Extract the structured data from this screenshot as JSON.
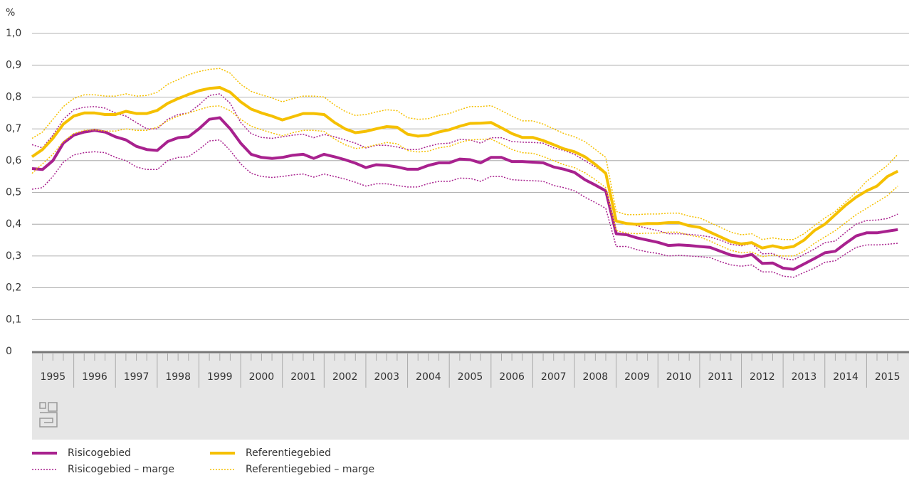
{
  "chart_data": {
    "type": "line",
    "y_unit": "%",
    "ylim": [
      0,
      1
    ],
    "yticks": [
      0,
      {
        "value": 0.1,
        "label": "0,1"
      },
      {
        "value": 0.2,
        "label": "0,2"
      },
      {
        "value": 0.3,
        "label": "0,3"
      },
      {
        "value": 0.4,
        "label": "0,4"
      },
      {
        "value": 0.5,
        "label": "0,5"
      },
      {
        "value": 0.6,
        "label": "0,6"
      },
      {
        "value": 0.7,
        "label": "0,7"
      },
      {
        "value": 0.8,
        "label": "0,8"
      },
      {
        "value": 0.9,
        "label": "0,9"
      },
      {
        "value": 1,
        "label": "1,0"
      }
    ],
    "grid": true,
    "categories": [
      "1995",
      null,
      null,
      null,
      "1996",
      null,
      null,
      null,
      "1997",
      null,
      null,
      null,
      "1998",
      null,
      null,
      null,
      "1999",
      null,
      null,
      null,
      "2000",
      null,
      null,
      null,
      "2001",
      null,
      null,
      null,
      "2002",
      null,
      null,
      null,
      "2003",
      null,
      null,
      null,
      "2004",
      null,
      null,
      null,
      "2005",
      null,
      null,
      null,
      "2006",
      null,
      null,
      null,
      "2007",
      null,
      null,
      null,
      "2008",
      null,
      null,
      null,
      "2009",
      null,
      null,
      null,
      "2010",
      null,
      null,
      null,
      "2011",
      null,
      null,
      null,
      "2012",
      null,
      null,
      null,
      "2013",
      null,
      null,
      null,
      "2014",
      null,
      null,
      null,
      "2015",
      null,
      null,
      null
    ],
    "series": [
      {
        "name": "Risicogebied",
        "color": "#a8218e",
        "values": [
          0.575,
          0.572,
          0.6,
          0.655,
          0.68,
          0.69,
          0.695,
          0.69,
          0.675,
          0.665,
          0.645,
          0.635,
          0.632,
          0.66,
          0.672,
          0.675,
          0.7,
          0.73,
          0.735,
          0.7,
          0.655,
          0.62,
          0.61,
          0.607,
          0.61,
          0.617,
          0.62,
          0.607,
          0.62,
          0.612,
          0.603,
          0.592,
          0.578,
          0.587,
          0.585,
          0.58,
          0.573,
          0.573,
          0.585,
          0.593,
          0.593,
          0.605,
          0.603,
          0.593,
          0.61,
          0.61,
          0.597,
          0.597,
          0.595,
          0.593,
          0.58,
          0.573,
          0.563,
          0.54,
          0.523,
          0.505,
          0.37,
          0.367,
          0.357,
          0.35,
          0.343,
          0.333,
          0.335,
          0.333,
          0.33,
          0.327,
          0.315,
          0.303,
          0.298,
          0.305,
          0.277,
          0.278,
          0.262,
          0.258,
          0.275,
          0.292,
          0.31,
          0.315,
          0.34,
          0.363,
          0.373,
          0.373,
          0.378,
          0.383
        ]
      },
      {
        "name": "Risicogebied – marge",
        "color": "#a8218e",
        "upper": [
          0.65,
          0.64,
          0.68,
          0.73,
          0.76,
          0.768,
          0.77,
          0.765,
          0.75,
          0.74,
          0.72,
          0.7,
          0.7,
          0.73,
          0.745,
          0.75,
          0.775,
          0.805,
          0.81,
          0.78,
          0.72,
          0.685,
          0.673,
          0.67,
          0.675,
          0.68,
          0.683,
          0.672,
          0.682,
          0.675,
          0.665,
          0.655,
          0.64,
          0.648,
          0.648,
          0.643,
          0.635,
          0.635,
          0.645,
          0.653,
          0.655,
          0.667,
          0.665,
          0.655,
          0.672,
          0.672,
          0.66,
          0.658,
          0.657,
          0.655,
          0.64,
          0.632,
          0.62,
          0.6,
          0.58,
          0.56,
          0.41,
          0.405,
          0.395,
          0.387,
          0.38,
          0.37,
          0.37,
          0.368,
          0.365,
          0.36,
          0.35,
          0.337,
          0.332,
          0.34,
          0.307,
          0.308,
          0.292,
          0.288,
          0.305,
          0.322,
          0.342,
          0.347,
          0.375,
          0.4,
          0.412,
          0.413,
          0.418,
          0.432
        ],
        "lower": [
          0.51,
          0.515,
          0.55,
          0.595,
          0.618,
          0.625,
          0.628,
          0.625,
          0.61,
          0.6,
          0.58,
          0.572,
          0.572,
          0.6,
          0.61,
          0.612,
          0.635,
          0.662,
          0.665,
          0.632,
          0.59,
          0.56,
          0.55,
          0.547,
          0.55,
          0.555,
          0.558,
          0.548,
          0.558,
          0.55,
          0.542,
          0.532,
          0.52,
          0.527,
          0.527,
          0.522,
          0.517,
          0.517,
          0.528,
          0.535,
          0.535,
          0.545,
          0.544,
          0.535,
          0.55,
          0.55,
          0.54,
          0.538,
          0.537,
          0.535,
          0.522,
          0.515,
          0.505,
          0.485,
          0.468,
          0.45,
          0.33,
          0.33,
          0.32,
          0.313,
          0.308,
          0.3,
          0.302,
          0.3,
          0.298,
          0.295,
          0.282,
          0.272,
          0.268,
          0.272,
          0.25,
          0.25,
          0.237,
          0.233,
          0.248,
          0.262,
          0.28,
          0.285,
          0.307,
          0.327,
          0.335,
          0.335,
          0.337,
          0.34
        ]
      },
      {
        "name": "Referentiegebied",
        "color": "#f5c000",
        "values": [
          0.612,
          0.635,
          0.67,
          0.715,
          0.74,
          0.75,
          0.75,
          0.745,
          0.745,
          0.755,
          0.748,
          0.748,
          0.758,
          0.78,
          0.795,
          0.808,
          0.82,
          0.827,
          0.83,
          0.815,
          0.785,
          0.762,
          0.75,
          0.74,
          0.728,
          0.738,
          0.748,
          0.748,
          0.745,
          0.72,
          0.7,
          0.688,
          0.692,
          0.7,
          0.707,
          0.705,
          0.683,
          0.677,
          0.68,
          0.69,
          0.697,
          0.708,
          0.717,
          0.718,
          0.72,
          0.703,
          0.685,
          0.673,
          0.673,
          0.663,
          0.65,
          0.637,
          0.628,
          0.612,
          0.588,
          0.56,
          0.41,
          0.402,
          0.4,
          0.402,
          0.402,
          0.405,
          0.405,
          0.395,
          0.39,
          0.375,
          0.36,
          0.345,
          0.338,
          0.342,
          0.325,
          0.332,
          0.325,
          0.33,
          0.35,
          0.38,
          0.4,
          0.43,
          0.46,
          0.485,
          0.505,
          0.52,
          0.55,
          0.567
        ]
      },
      {
        "name": "Referentiegebied – marge",
        "color": "#f5c000",
        "upper": [
          0.67,
          0.69,
          0.73,
          0.77,
          0.795,
          0.807,
          0.807,
          0.803,
          0.803,
          0.81,
          0.803,
          0.805,
          0.815,
          0.84,
          0.855,
          0.87,
          0.88,
          0.887,
          0.89,
          0.875,
          0.84,
          0.818,
          0.807,
          0.797,
          0.785,
          0.795,
          0.803,
          0.803,
          0.8,
          0.775,
          0.755,
          0.742,
          0.745,
          0.753,
          0.76,
          0.757,
          0.735,
          0.73,
          0.732,
          0.742,
          0.748,
          0.76,
          0.77,
          0.77,
          0.773,
          0.757,
          0.74,
          0.725,
          0.725,
          0.715,
          0.7,
          0.685,
          0.675,
          0.66,
          0.635,
          0.61,
          0.44,
          0.43,
          0.43,
          0.432,
          0.432,
          0.435,
          0.435,
          0.425,
          0.42,
          0.405,
          0.39,
          0.375,
          0.367,
          0.37,
          0.352,
          0.357,
          0.352,
          0.352,
          0.37,
          0.395,
          0.42,
          0.44,
          0.47,
          0.5,
          0.535,
          0.56,
          0.585,
          0.62
        ],
        "lower": [
          0.56,
          0.59,
          0.62,
          0.66,
          0.685,
          0.695,
          0.697,
          0.693,
          0.693,
          0.7,
          0.695,
          0.695,
          0.705,
          0.725,
          0.74,
          0.75,
          0.76,
          0.77,
          0.772,
          0.757,
          0.73,
          0.708,
          0.697,
          0.687,
          0.678,
          0.688,
          0.695,
          0.695,
          0.692,
          0.668,
          0.65,
          0.638,
          0.642,
          0.65,
          0.657,
          0.653,
          0.632,
          0.627,
          0.63,
          0.64,
          0.645,
          0.657,
          0.665,
          0.667,
          0.668,
          0.652,
          0.635,
          0.625,
          0.623,
          0.613,
          0.6,
          0.587,
          0.578,
          0.562,
          0.54,
          0.515,
          0.38,
          0.372,
          0.37,
          0.372,
          0.372,
          0.375,
          0.375,
          0.365,
          0.36,
          0.347,
          0.332,
          0.318,
          0.31,
          0.313,
          0.298,
          0.303,
          0.3,
          0.3,
          0.315,
          0.34,
          0.36,
          0.38,
          0.405,
          0.43,
          0.45,
          0.47,
          0.49,
          0.52
        ]
      }
    ]
  }
}
